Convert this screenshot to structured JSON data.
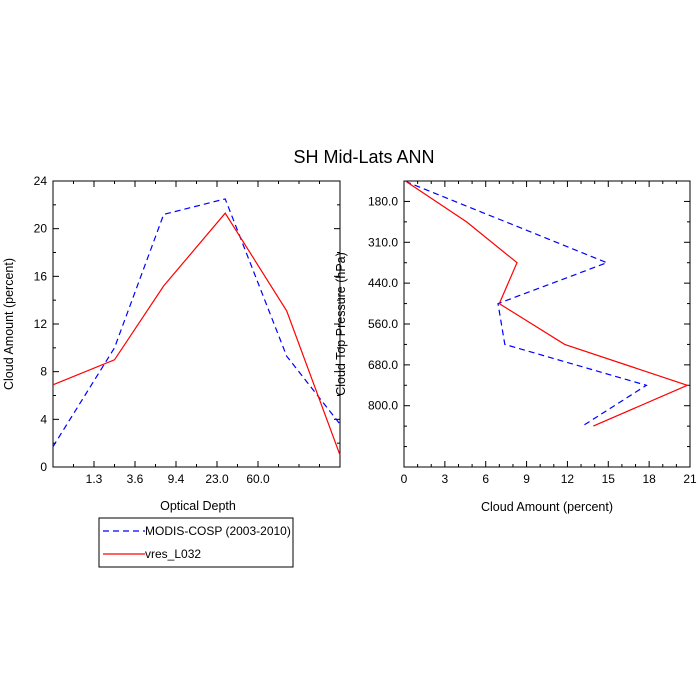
{
  "figure": {
    "title": "SH Mid-Lats ANN"
  },
  "legend": {
    "placement": "below-left",
    "entries": [
      {
        "name": "MODIS-COSP (2003-2010)",
        "color": "#0000ff",
        "dash": "dashed"
      },
      {
        "name": "vres_L032",
        "color": "#ff0000",
        "dash": "solid"
      }
    ]
  },
  "chart_data": [
    {
      "type": "line",
      "xlabel": "Optical Depth",
      "ylabel": "Cloud Amount (percent)",
      "xlim": [
        0,
        7
      ],
      "ylim": [
        0,
        24
      ],
      "x_ticks": [
        {
          "pos": 1,
          "label": "1.3"
        },
        {
          "pos": 2,
          "label": "3.6"
        },
        {
          "pos": 3,
          "label": "9.4"
        },
        {
          "pos": 4,
          "label": "23.0"
        },
        {
          "pos": 5,
          "label": "60.0"
        }
      ],
      "y_ticks": [
        0,
        4,
        8,
        12,
        16,
        20,
        24
      ],
      "y_tick_labels": [
        "0",
        "4",
        "8",
        "12",
        "16",
        "20",
        "24"
      ],
      "series": [
        {
          "name": "MODIS-COSP (2003-2010)",
          "color": "#0000ff",
          "dash": "dashed",
          "points": [
            [
              0,
              1.7
            ],
            [
              1.5,
              10.0
            ],
            [
              2.7,
              21.2
            ],
            [
              4.2,
              22.5
            ],
            [
              5.7,
              9.3
            ],
            [
              7,
              3.6
            ]
          ]
        },
        {
          "name": "vres_L032",
          "color": "#ff0000",
          "dash": "solid",
          "points": [
            [
              0,
              6.9
            ],
            [
              1.5,
              9.0
            ],
            [
              2.7,
              15.2
            ],
            [
              4.2,
              21.3
            ],
            [
              5.7,
              13.1
            ],
            [
              7,
              1.0
            ]
          ]
        }
      ]
    },
    {
      "type": "line",
      "xlabel": "Cloud Amount (percent)",
      "ylabel": "Cloud Top Pressure (hPa)",
      "xlim": [
        0,
        21
      ],
      "ylim_top_to_bottom": [
        0,
        7
      ],
      "x_ticks": [
        0,
        3,
        6,
        9,
        12,
        15,
        18,
        21
      ],
      "x_tick_labels": [
        "0",
        "3",
        "6",
        "9",
        "12",
        "15",
        "18",
        "21"
      ],
      "y_ticks": [
        {
          "pos": 0.5,
          "label": "180.0"
        },
        {
          "pos": 1.5,
          "label": "310.0"
        },
        {
          "pos": 2.5,
          "label": "440.0"
        },
        {
          "pos": 3.5,
          "label": "560.0"
        },
        {
          "pos": 4.5,
          "label": "680.0"
        },
        {
          "pos": 5.5,
          "label": "800.0"
        }
      ],
      "series": [
        {
          "name": "MODIS-COSP (2003-2010)",
          "color": "#0000ff",
          "dash": "dashed",
          "points": [
            [
              0.1,
              0
            ],
            [
              0.4,
              0.05
            ],
            [
              14.9,
              2.0
            ],
            [
              6.9,
              3.0
            ],
            [
              7.4,
              4.0
            ],
            [
              17.8,
              5.0
            ],
            [
              13.1,
              6.0
            ]
          ]
        },
        {
          "name": "vres_L032",
          "color": "#ff0000",
          "dash": "solid",
          "points": [
            [
              0.1,
              0
            ],
            [
              4.6,
              1.0
            ],
            [
              8.3,
              2.0
            ],
            [
              7.0,
              3.0
            ],
            [
              11.8,
              4.0
            ],
            [
              20.8,
              5.0
            ],
            [
              13.9,
              6.0
            ]
          ]
        }
      ]
    }
  ]
}
